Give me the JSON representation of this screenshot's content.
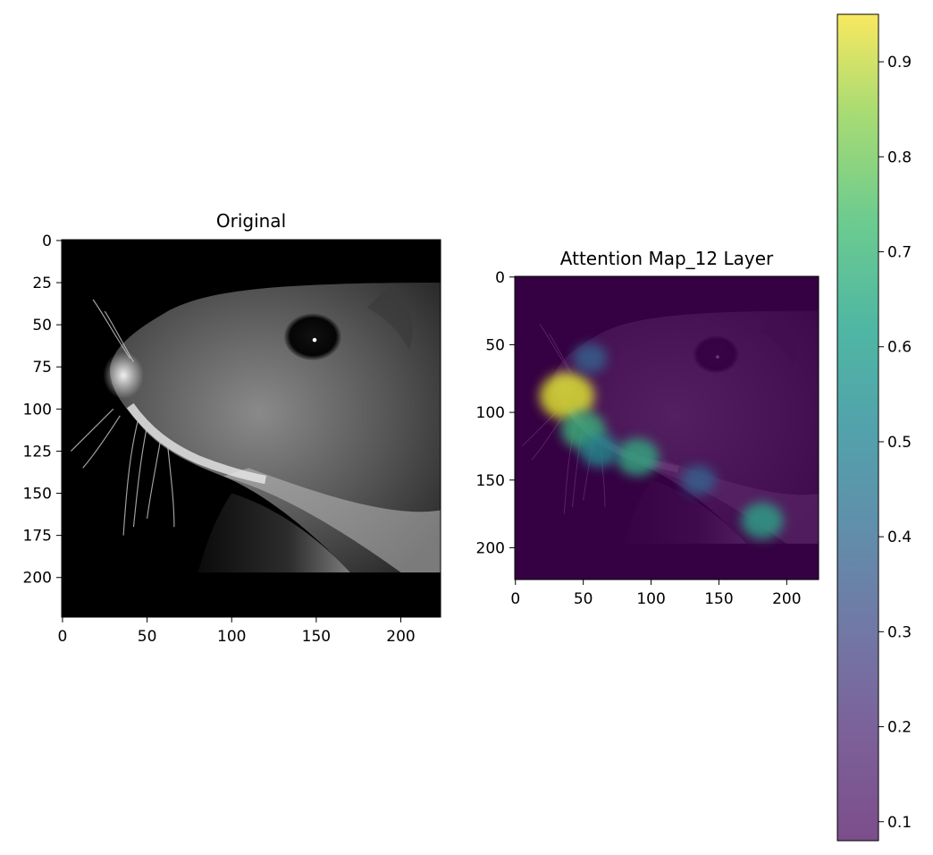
{
  "chart_data": [
    {
      "type": "heatmap",
      "title": "Original",
      "image_description": "grayscale close-up photograph of a mouse head in profile, facing left, with whiskers and a dark eye",
      "colormap": "gray",
      "image_extent": {
        "x": [
          -0.5,
          223.5
        ],
        "y": [
          223.5,
          -0.5
        ]
      },
      "content_region_rows": [
        25,
        197
      ],
      "x_ticks": [
        0,
        50,
        100,
        150,
        200
      ],
      "x_tick_labels": [
        "0",
        "50",
        "100",
        "150",
        "200"
      ],
      "y_ticks": [
        0,
        25,
        50,
        75,
        100,
        125,
        150,
        175,
        200
      ],
      "y_tick_labels": [
        "0",
        "25",
        "50",
        "75",
        "100",
        "125",
        "150",
        "175",
        "200"
      ],
      "y_inverted": true
    },
    {
      "type": "heatmap",
      "title": "Attention Map_12 Layer",
      "colormap": "viridis",
      "overlay_alpha": 0.7,
      "image_extent": {
        "x": [
          -0.5,
          223.5
        ],
        "y": [
          223.5,
          -0.5
        ]
      },
      "hotspots": [
        {
          "x": 38,
          "y": 88,
          "value": 0.95
        },
        {
          "x": 50,
          "y": 113,
          "value": 0.62
        },
        {
          "x": 90,
          "y": 133,
          "value": 0.58
        },
        {
          "x": 182,
          "y": 180,
          "value": 0.55
        },
        {
          "x": 62,
          "y": 128,
          "value": 0.45
        },
        {
          "x": 135,
          "y": 150,
          "value": 0.3
        },
        {
          "x": 55,
          "y": 60,
          "value": 0.3
        }
      ],
      "x_ticks": [
        0,
        50,
        100,
        150,
        200
      ],
      "x_tick_labels": [
        "0",
        "50",
        "100",
        "150",
        "200"
      ],
      "y_ticks": [
        0,
        50,
        100,
        150,
        200
      ],
      "y_tick_labels": [
        "0",
        "50",
        "100",
        "150",
        "200"
      ],
      "y_inverted": true
    }
  ],
  "colorbar": {
    "colormap": "viridis",
    "alpha": 0.7,
    "range": [
      0.08,
      0.95
    ],
    "ticks": [
      0.1,
      0.2,
      0.3,
      0.4,
      0.5,
      0.6,
      0.7,
      0.8,
      0.9
    ],
    "tick_labels": [
      "0.1",
      "0.2",
      "0.3",
      "0.4",
      "0.5",
      "0.6",
      "0.7",
      "0.8",
      "0.9"
    ]
  }
}
